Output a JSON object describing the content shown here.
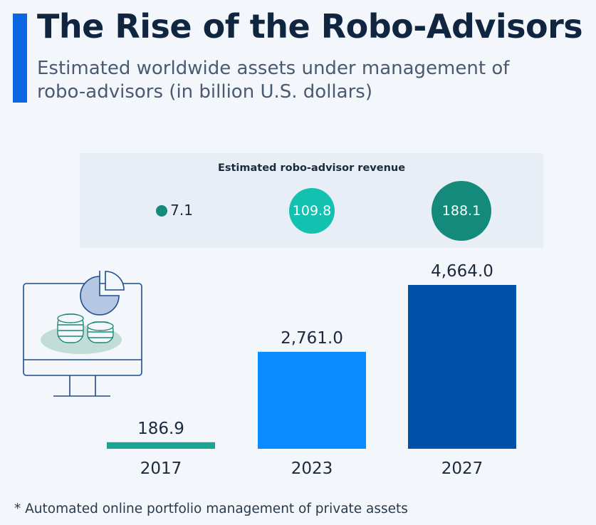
{
  "header": {
    "title": "The Rise of the Robo-Advisors",
    "subtitle": "Estimated worldwide assets under management of robo-advisors (in billion U.S. dollars)"
  },
  "revenue_panel": {
    "title": "Estimated robo-advisor revenue",
    "values": [
      {
        "year": "2017",
        "label": "7.1",
        "value": 7.1,
        "color": "#138a7a"
      },
      {
        "year": "2023",
        "label": "109.8",
        "value": 109.8,
        "color": "#12c1b0"
      },
      {
        "year": "2027",
        "label": "188.1",
        "value": 188.1,
        "color": "#138a7a"
      }
    ]
  },
  "chart_data": {
    "type": "bar",
    "categories": [
      "2017",
      "2023",
      "2027"
    ],
    "values": [
      186.9,
      2761.0,
      4664.0
    ],
    "value_labels": [
      "186.9",
      "2,761.0",
      "4,664.0"
    ],
    "colors": [
      "#1aa593",
      "#0a8cff",
      "#0052a8"
    ],
    "title": "The Rise of the Robo-Advisors",
    "ylabel": "",
    "xlabel": "",
    "ylim": [
      0,
      4664.0
    ],
    "grid": false
  },
  "footnote": "* Automated online portfolio management of private assets",
  "illustration": {
    "icon": "computer-monitor-with-pie-chart-and-coins-icon"
  }
}
